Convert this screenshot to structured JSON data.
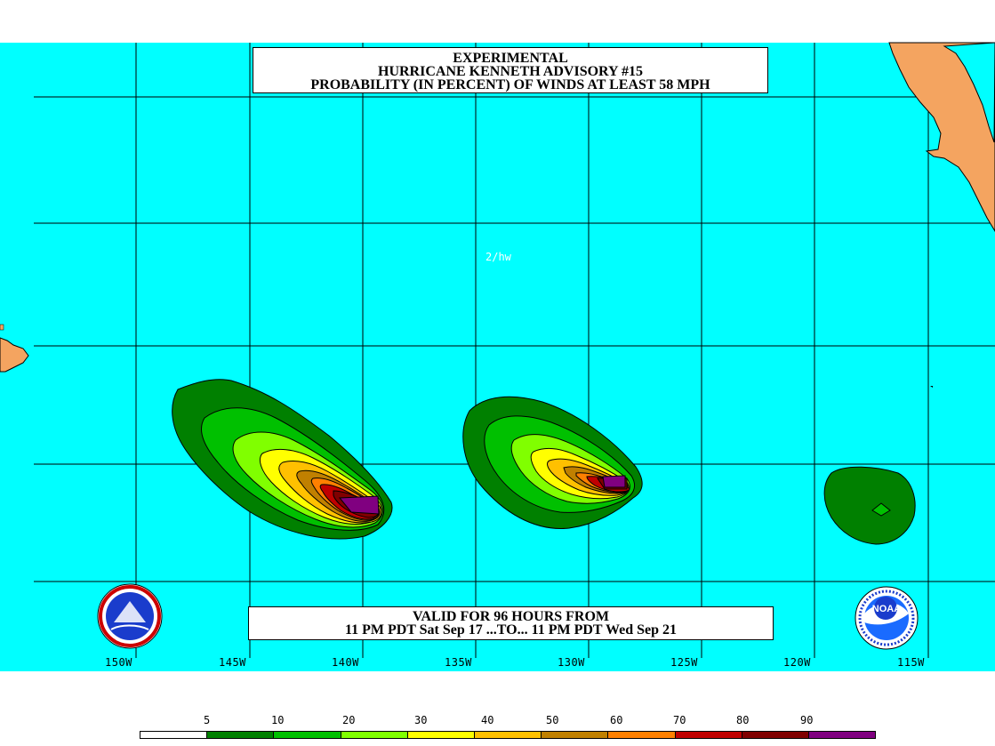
{
  "title": {
    "line1": "EXPERIMENTAL",
    "line2": "HURRICANE KENNETH ADVISORY #15",
    "line3": "PROBABILITY (IN PERCENT) OF WINDS AT LEAST 58 MPH"
  },
  "valid": {
    "line1": "VALID FOR 96 HOURS FROM",
    "line2": "11 PM PDT Sat Sep 17 ...TO... 11 PM PDT Wed Sep 21"
  },
  "map_label": "2/hw",
  "longitude_labels": [
    "150W",
    "145W",
    "140W",
    "135W",
    "130W",
    "125W",
    "120W",
    "115W"
  ],
  "legend": {
    "thresholds": [
      "5",
      "10",
      "20",
      "30",
      "40",
      "50",
      "60",
      "70",
      "80",
      "90"
    ],
    "colors": [
      "#ffffff",
      "#008000",
      "#00c000",
      "#80ff00",
      "#ffff00",
      "#ffc000",
      "#c08000",
      "#ff8000",
      "#c00000",
      "#800000",
      "#800080"
    ]
  },
  "colors": {
    "ocean": "#00ffff",
    "land": "#f4a460",
    "grid": "#000000"
  },
  "logos": {
    "left": "national-weather-service-logo",
    "right": "noaa-logo",
    "right_text": "NOAA"
  }
}
